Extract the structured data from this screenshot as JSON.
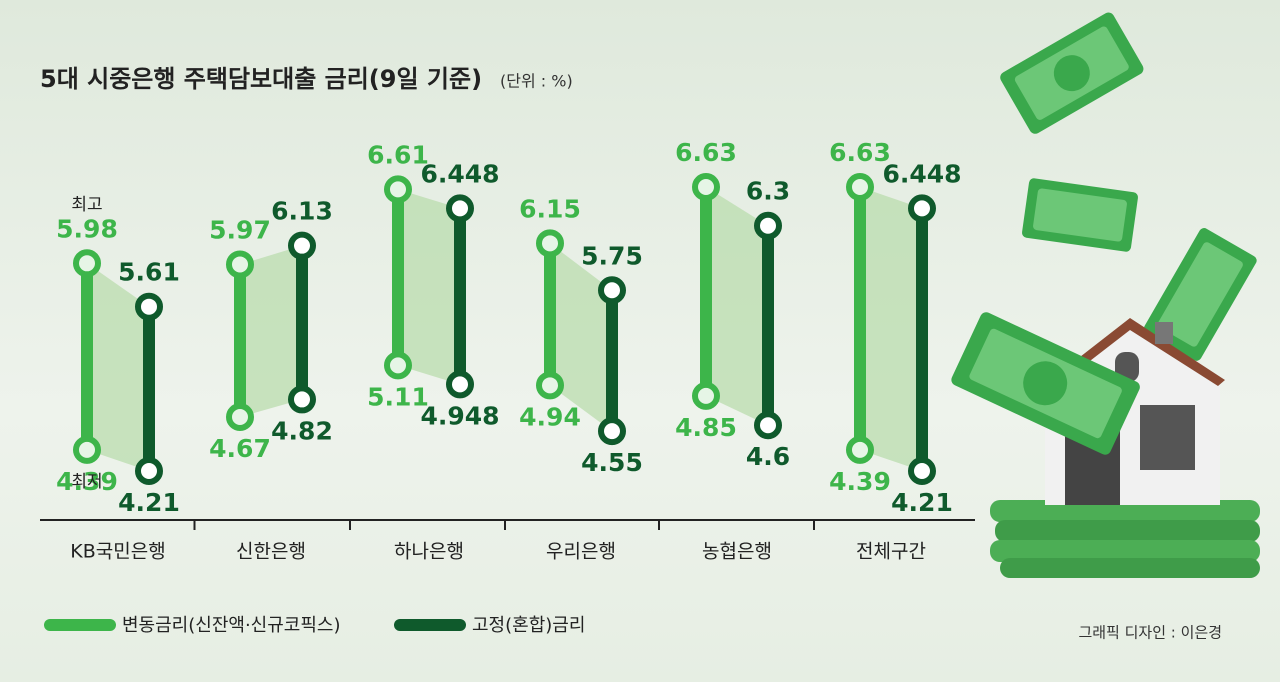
{
  "chart_data": {
    "type": "range",
    "title": "5대 시중은행 주택담보대출 금리(9일 기준)",
    "subtitle": "(단위 : %)",
    "annotations": [
      "최고",
      "최저"
    ],
    "credit": "그래픽 디자인 : 이은경",
    "categories": [
      "KB국민은행",
      "신한은행",
      "하나은행",
      "우리은행",
      "농협은행",
      "전체구간"
    ],
    "series": [
      {
        "name": "변동금리(신잔액·신규코픽스)",
        "color": "#3db54a",
        "high": [
          5.98,
          5.97,
          6.61,
          6.15,
          6.63,
          6.63
        ],
        "low": [
          4.39,
          4.67,
          5.11,
          4.94,
          4.85,
          4.39
        ]
      },
      {
        "name": "고정(혼합)금리",
        "color": "#0f5a2c",
        "high": [
          5.61,
          6.13,
          6.448,
          5.75,
          6.3,
          6.448
        ],
        "low": [
          4.21,
          4.82,
          4.948,
          4.55,
          4.6,
          4.21
        ]
      }
    ]
  }
}
